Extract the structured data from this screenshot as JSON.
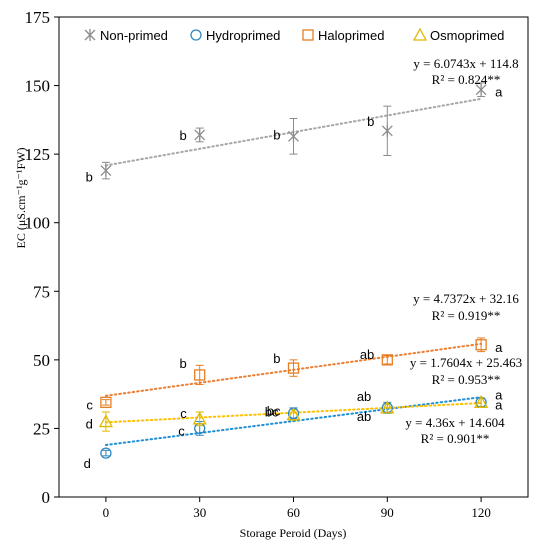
{
  "chart_data": {
    "type": "scatter",
    "title": "",
    "xlabel": "Storage Peroid (Days)",
    "ylabel": "EC (μS.cm⁻¹g⁻¹FW)",
    "xlim": [
      -15,
      135
    ],
    "ylim": [
      0,
      175
    ],
    "x_ticks": [
      "0",
      "30",
      "60",
      "90",
      "120"
    ],
    "y_ticks": [
      "0",
      "25",
      "50",
      "75",
      "100",
      "125",
      "150",
      "175"
    ],
    "grid": false,
    "legend_position": "top",
    "x": [
      0,
      30,
      60,
      90,
      120
    ],
    "series": [
      {
        "name": "Non-primed",
        "marker": "star",
        "color": "#8c8c8c",
        "trend_color": "#a6a6a6",
        "values": [
          119,
          132,
          131.5,
          133.5,
          148.5
        ],
        "errors": [
          3,
          2.5,
          6.5,
          9,
          2.5
        ],
        "letters": [
          "b",
          "b",
          "b",
          "b",
          "a"
        ],
        "equation": "y = 6.0743x + 114.8",
        "r2": "R² = 0.824**",
        "slope": 6.0743,
        "intercept": 114.8
      },
      {
        "name": "Hydroprimed",
        "marker": "circle",
        "color": "#2e86c1",
        "trend_color": "#1f8fd6",
        "values": [
          16,
          25,
          30.5,
          32.5,
          34.5
        ],
        "errors": [
          1,
          2.5,
          2,
          2,
          1.5
        ],
        "letters": [
          "d",
          "c",
          "bc",
          "ab",
          "a"
        ],
        "equation": "y = 4.36x + 14.604",
        "r2": "R² = 0.901**",
        "slope": 4.36,
        "intercept": 14.604
      },
      {
        "name": "Haloprimed",
        "marker": "square",
        "color": "#e67e22",
        "trend_color": "#ed7d31",
        "values": [
          34.5,
          44.5,
          47,
          50,
          55.5
        ],
        "errors": [
          1,
          3.5,
          3,
          1.5,
          2.5
        ],
        "letters": [
          "c",
          "b",
          "b",
          "ab",
          "a"
        ],
        "equation": "y = 4.7372x + 32.16",
        "r2": "R² = 0.919**",
        "slope": 4.7372,
        "intercept": 32.16
      },
      {
        "name": "Osmoprimed",
        "marker": "triangle",
        "color": "#e0b800",
        "trend_color": "#ffc000",
        "values": [
          27.5,
          28.5,
          30,
          32.5,
          34.5
        ],
        "errors": [
          3.5,
          2.5,
          2,
          1.5,
          1.5
        ],
        "letters": [
          "d",
          "c",
          "bc",
          "ab",
          "a"
        ],
        "equation": "y = 1.7604x + 25.463",
        "r2": "R² = 0.953**",
        "slope": 1.7604,
        "intercept": 25.463
      }
    ]
  }
}
